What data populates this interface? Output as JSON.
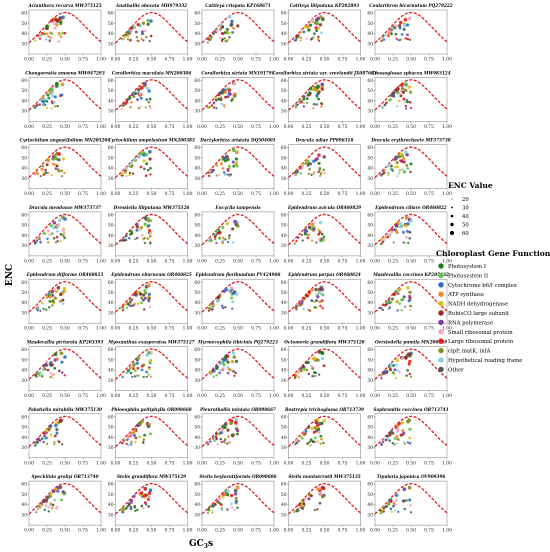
{
  "figure": {
    "xlabel": "GC3s",
    "xlabel_main": "GC",
    "xlabel_sub": "3",
    "xlabel_tail": "s",
    "ylabel": "ENC"
  },
  "legend": {
    "size_title": "ENC Value",
    "size_values": [
      "20",
      "30",
      "40",
      "50",
      "60"
    ],
    "function_title": "Chloroplast Gene Function",
    "functions": [
      {
        "label": "Photosystem I",
        "color": "#1a7d1a"
      },
      {
        "label": "Photosystem II",
        "color": "#5cc44a"
      },
      {
        "label": "Cytochrome b6/f complex",
        "color": "#2a6cc8"
      },
      {
        "label": "ATP synthase",
        "color": "#ee8a1e"
      },
      {
        "label": "NADH dehydrogenase",
        "color": "#d9c21c"
      },
      {
        "label": "RubisCO large subunit",
        "color": "#9a2a1a"
      },
      {
        "label": "RNA polymerase",
        "color": "#7a3aa0"
      },
      {
        "label": "Small ribosomal protein",
        "color": "#f3a6c6"
      },
      {
        "label": "Large ribosomal protein",
        "color": "#e41a1c"
      },
      {
        "label": "clpP, matK, infA",
        "color": "#8a8a22"
      },
      {
        "label": "Hypothetical reading frame",
        "color": "#7fd3e8"
      },
      {
        "label": "Other",
        "color": "#555555"
      }
    ]
  },
  "chart_data": {
    "type": "scatter",
    "panel_count": 40,
    "x_ticks": [
      "0.00",
      "0.25",
      "0.50",
      "0.75",
      "1.00"
    ],
    "y_ticks": [
      "30",
      "40",
      "50",
      "60"
    ],
    "xlim": [
      0,
      1
    ],
    "ylim": [
      20,
      63
    ],
    "expected_curve": {
      "formula": "ENC = 2 + GC3s + 29 / (GC3s^2 + (1 - GC3s)^2)",
      "color": "#e41a1c",
      "style": "dashed"
    },
    "panels": [
      {
        "title": "Acianthera recurva MW375125"
      },
      {
        "title": "Anathallis obovata MH979332"
      },
      {
        "title": "Cattleya crispata KP168671"
      },
      {
        "title": "Cattleya liliputana KP202893"
      },
      {
        "title": "Caularthron bicornutum PQ279222"
      },
      {
        "title": "Chongorestia amoena MW047293"
      },
      {
        "title": "Corallorhiza maculata MN200386"
      },
      {
        "title": "Corallorhiza striata MN191791"
      },
      {
        "title": "Corallorhiza striata var. vreelandii JX087683"
      },
      {
        "title": "Crossoglossa sphacea MW983124"
      },
      {
        "title": "Cyrtochilum angustifolium MN205204"
      },
      {
        "title": "Cyrtochilum ampelastum MN200383"
      },
      {
        "title": "Dactylorhiza aristata DQ504001"
      },
      {
        "title": "Dracula adiae PP896318"
      },
      {
        "title": "Dracula erythrochaete MF373738"
      },
      {
        "title": "Dracula mendozae MW373737"
      },
      {
        "title": "Dresslella liliputana MW375126"
      },
      {
        "title": "Encyclia tampensis"
      },
      {
        "title": "Epidendrum avicula OR460829"
      },
      {
        "title": "Epidendrum ciliare OR460822"
      },
      {
        "title": "Epidendrum difforme OR460823"
      },
      {
        "title": "Epidendrum eburneum OR460825"
      },
      {
        "title": "Epidendrum floribundum PV424906"
      },
      {
        "title": "Epidendrum porpax OR460824"
      },
      {
        "title": "Masdevallia coccinea KP205432"
      },
      {
        "title": "Masdevallia picturata KP205393"
      },
      {
        "title": "Myoxanthus exasperatus MW375127"
      },
      {
        "title": "Myrmecophila tibicinis PQ279223"
      },
      {
        "title": "Octomeria grandiflora MW375128"
      },
      {
        "title": "Oerstedella pumila MN200369"
      },
      {
        "title": "Pabstiella mirabilis MW375130"
      },
      {
        "title": "Phloeophila peltiphylla OR098668"
      },
      {
        "title": "Pleurothallis miniata OR098667"
      },
      {
        "title": "Restrepia trichoglossa OR713739"
      },
      {
        "title": "Sophronitis coccinea OR713741"
      },
      {
        "title": "Specklinia grobyi OR713740"
      },
      {
        "title": "Stelis grandiflora MW375129"
      },
      {
        "title": "Stelis heylorutiformis OR098686"
      },
      {
        "title": "Stelis montserratii MW375135"
      },
      {
        "title": "Tipularia japonica OV909396"
      }
    ]
  }
}
